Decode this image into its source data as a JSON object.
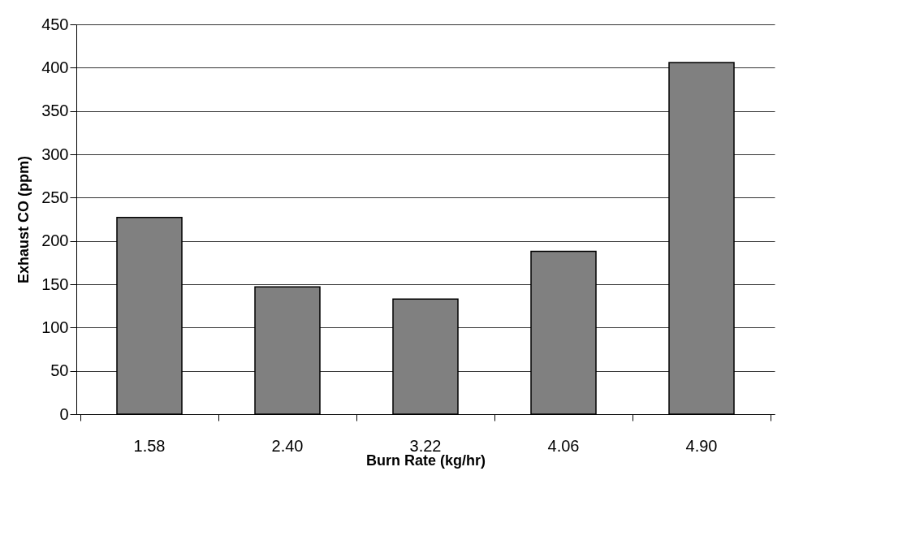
{
  "chart_data": {
    "type": "bar",
    "xlabel": "Burn Rate (kg/hr)",
    "ylabel": "Exhaust CO (ppm)",
    "categories": [
      "1.58",
      "2.40",
      "3.22",
      "4.06",
      "4.90"
    ],
    "series": [
      {
        "color": "#808080",
        "values": [
          227,
          147,
          133,
          188,
          406
        ]
      }
    ],
    "ylim": [
      0,
      450
    ],
    "yticks": [
      0,
      50,
      100,
      150,
      200,
      250,
      300,
      350,
      400,
      450
    ],
    "grid": "y"
  }
}
